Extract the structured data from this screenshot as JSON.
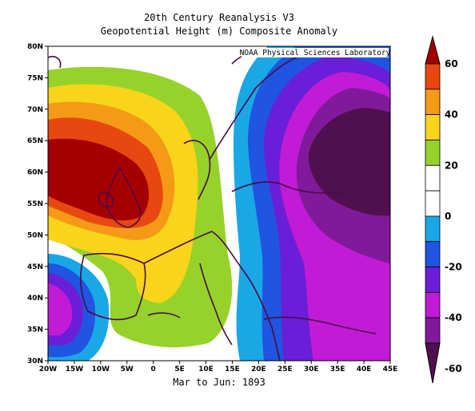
{
  "title": "20th Century Reanalysis V3",
  "subtitle": "Geopotential Height (m) Composite Anomaly",
  "period": "Mar to Jun: 1893",
  "credit": "NOAA Physical Sciences Laboratory",
  "lat_ticks": [
    "30N",
    "35N",
    "40N",
    "45N",
    "50N",
    "55N",
    "60N",
    "65N",
    "70N",
    "75N",
    "80N"
  ],
  "lon_ticks": [
    "20W",
    "15W",
    "10W",
    "5W",
    "0",
    "5E",
    "10E",
    "15E",
    "20E",
    "25E",
    "30E",
    "35E",
    "40E",
    "45E"
  ],
  "colorbar": {
    "labels": [
      "60",
      "40",
      "20",
      "0",
      "-20",
      "-40",
      "-60"
    ],
    "bands": [
      "#a50000",
      "#e8480f",
      "#f59a17",
      "#f8d41a",
      "#96d22a",
      "#ffffff",
      "#ffffff",
      "#1aa7e6",
      "#1f55e0",
      "#6a1ed8",
      "#c11bd6",
      "#811a9a",
      "#50104f"
    ]
  }
}
